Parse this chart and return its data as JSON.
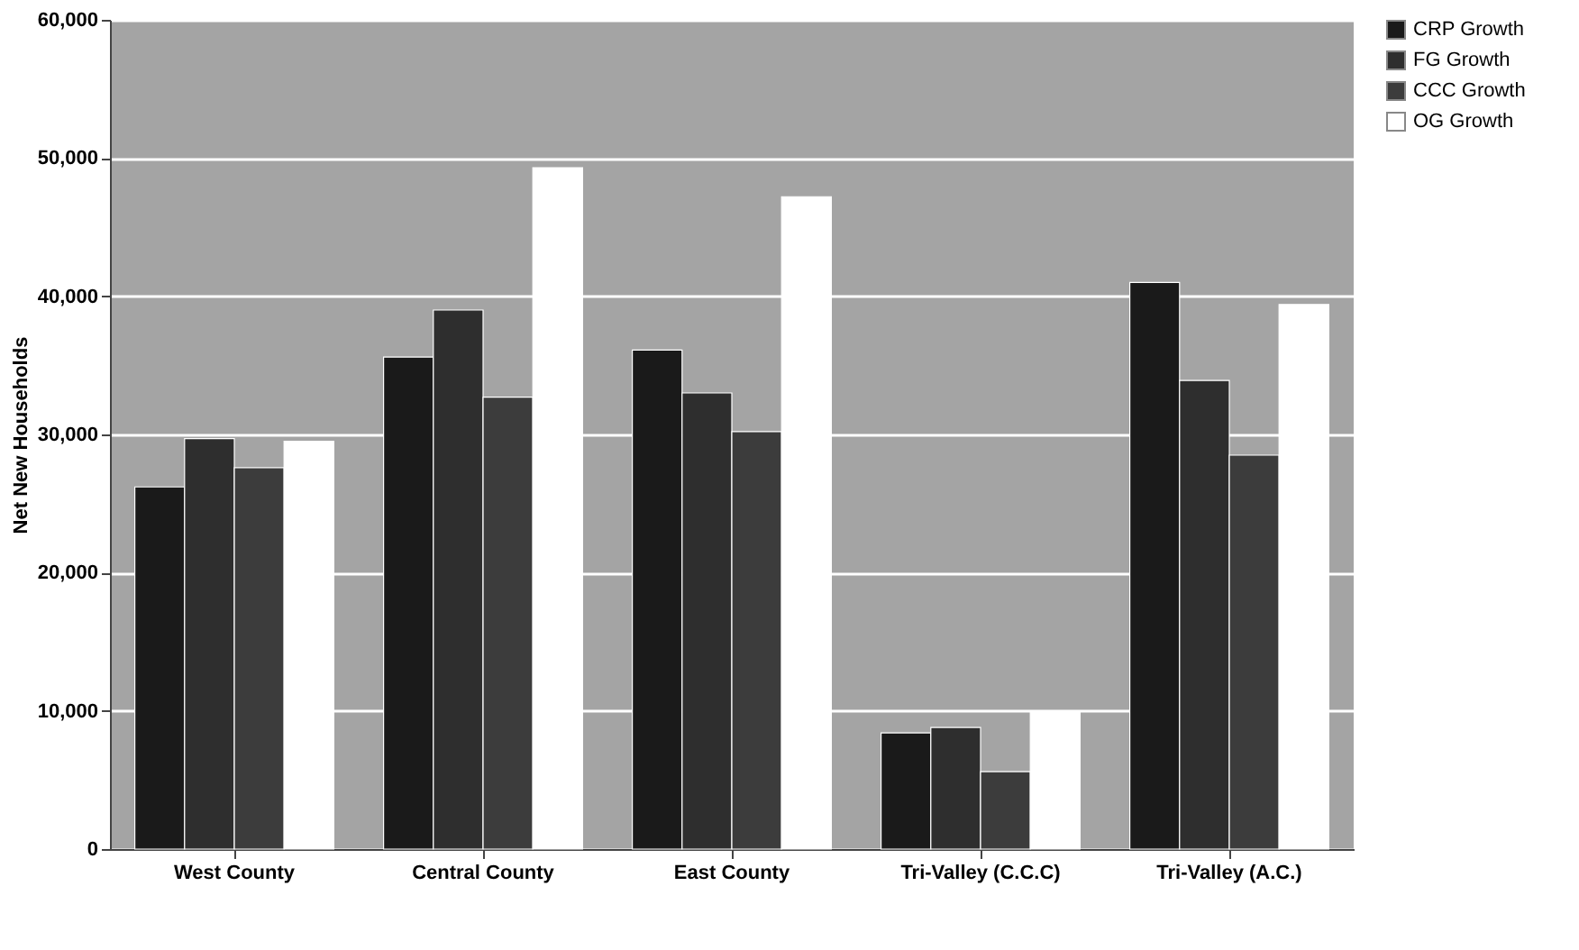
{
  "chart_data": {
    "type": "bar",
    "ylabel": "Net New Households",
    "categories": [
      "West County",
      "Central County",
      "East County",
      "Tri-Valley (C.C.C)",
      "Tri-Valley (A.C.)"
    ],
    "series": [
      {
        "name": "CRP Growth",
        "color": "#1a1a1a",
        "values": [
          26200,
          35600,
          36100,
          8400,
          41000
        ]
      },
      {
        "name": "FG Growth",
        "color": "#2e2e2e",
        "values": [
          29700,
          39000,
          33000,
          8800,
          33900
        ]
      },
      {
        "name": "CCC Growth",
        "color": "#3c3c3c",
        "values": [
          27600,
          32700,
          30200,
          5600,
          28500
        ]
      },
      {
        "name": "OG Growth",
        "color": "#ffffff",
        "values": [
          29500,
          49300,
          47200,
          10000,
          39400
        ]
      }
    ],
    "ylim": [
      0,
      60000
    ],
    "yticks": [
      0,
      {
        "value": 10000,
        "label": "10,000"
      },
      {
        "value": 20000,
        "label": "20,000"
      },
      {
        "value": 30000,
        "label": "30,000"
      },
      {
        "value": 40000,
        "label": "40,000"
      },
      {
        "value": 50000,
        "label": "50,000"
      },
      {
        "value": 60000,
        "label": "60,000"
      }
    ],
    "grid": "y",
    "legend": "right"
  }
}
